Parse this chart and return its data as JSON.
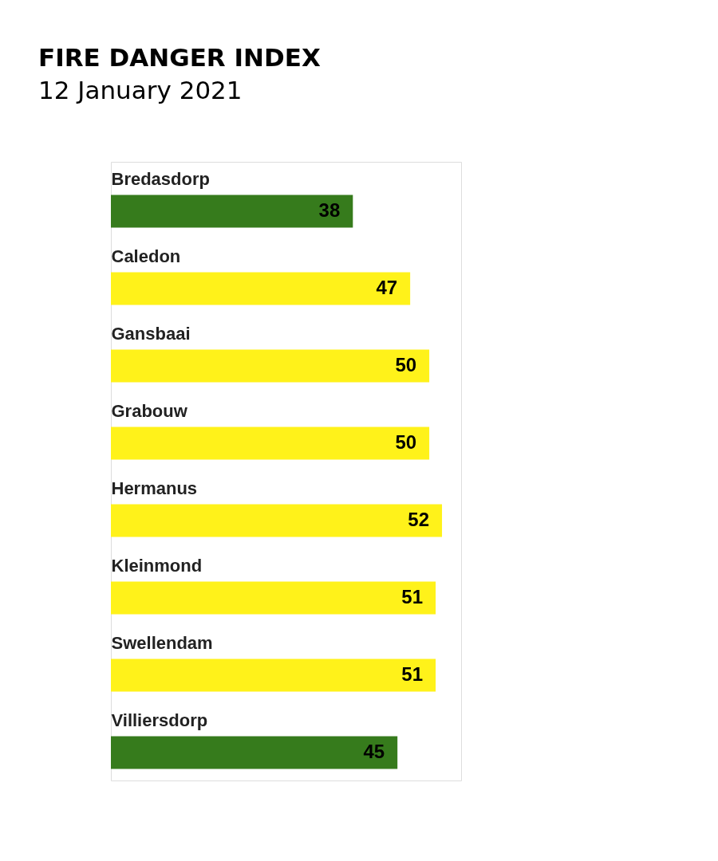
{
  "chart_data": {
    "type": "bar",
    "title": "FIRE DANGER INDEX",
    "subtitle": "12 January 2021",
    "orientation": "horizontal",
    "categories": [
      "Bredasdorp",
      "Caledon",
      "Gansbaai",
      "Grabouw",
      "Hermanus",
      "Kleinmond",
      "Swellendam",
      "Villiersdorp"
    ],
    "values": [
      38,
      47,
      50,
      50,
      52,
      51,
      51,
      45
    ],
    "colors": [
      "#367b1c",
      "#fff21a",
      "#fff21a",
      "#fff21a",
      "#fff21a",
      "#fff21a",
      "#fff21a",
      "#367b1c"
    ],
    "data_labels": true,
    "tick_labels": "y"
  }
}
